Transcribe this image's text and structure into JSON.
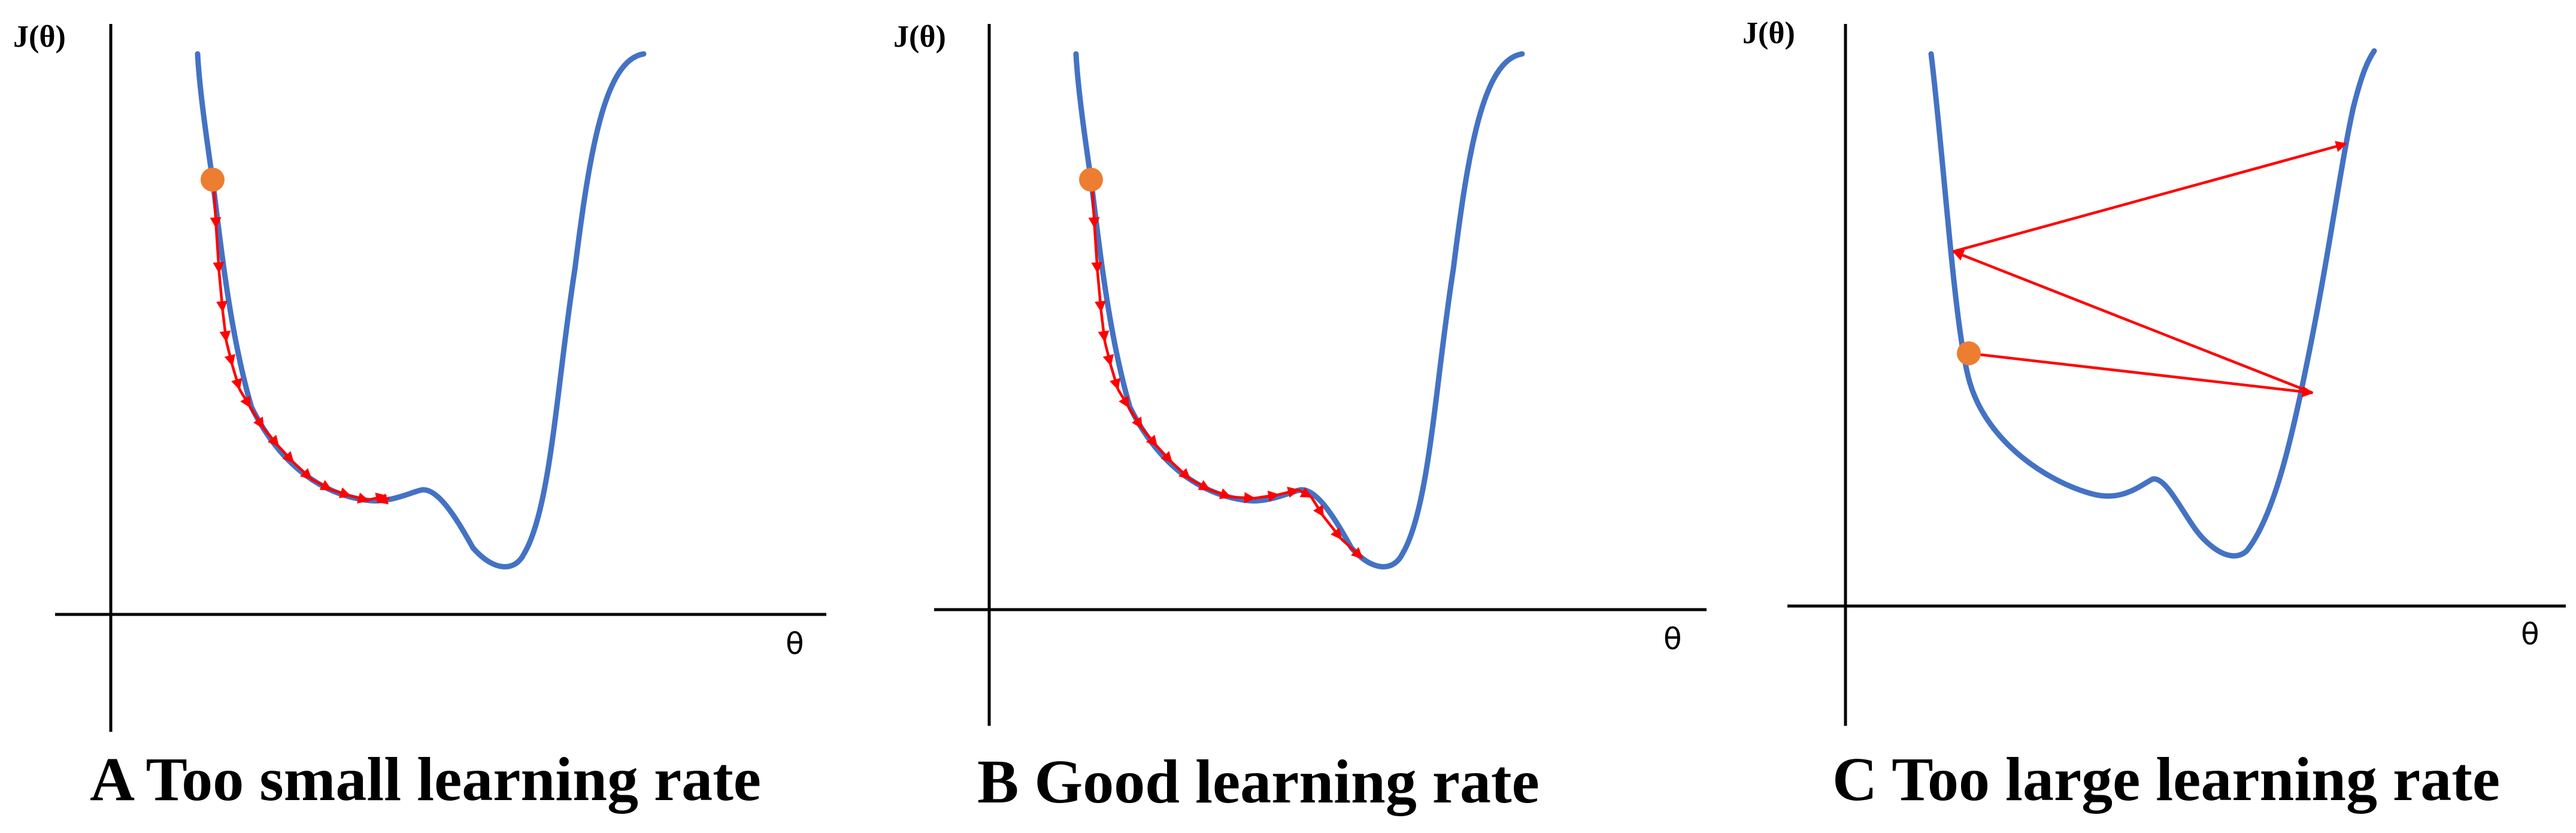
{
  "colors": {
    "curve": "#4472C4",
    "arrow": "#FF0000",
    "start_point": "#ED7D31",
    "axis": "#000000"
  },
  "panels": [
    {
      "id": "a",
      "y_label": "J(θ)",
      "x_label": "θ",
      "caption": "A Too small learning rate",
      "behavior": "small steps converge slowly, stopping in the local minimum",
      "steps": 16
    },
    {
      "id": "b",
      "y_label": "J(θ)",
      "x_label": "θ",
      "caption": "B Good learning rate",
      "behavior": "steps cross the bump and reach the global minimum",
      "steps": 20
    },
    {
      "id": "c",
      "y_label": "J(θ)",
      "x_label": "θ",
      "caption": "C Too large learning rate",
      "behavior": "large steps overshoot back and forth and diverge",
      "steps": 3
    }
  ]
}
